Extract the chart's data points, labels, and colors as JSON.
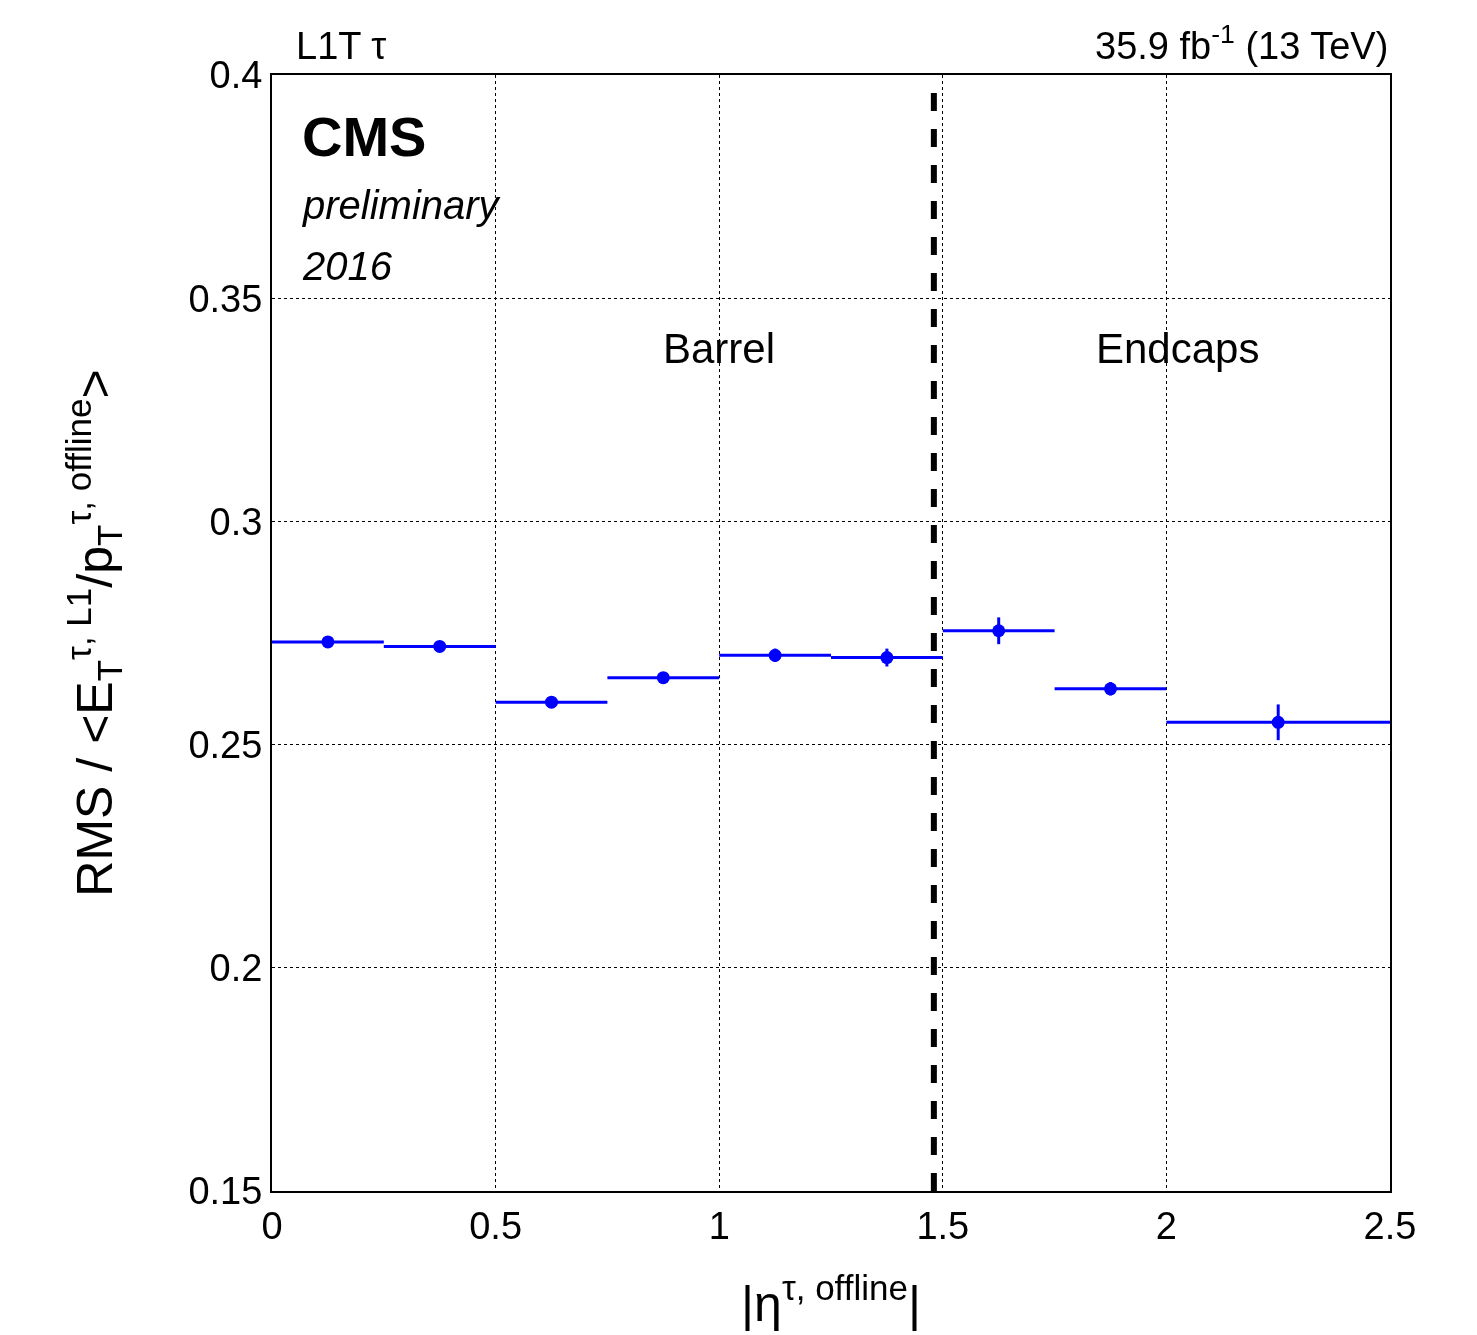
{
  "chart_data": {
    "type": "scatter",
    "xlabel": "|η$^{τ, offline}$|",
    "ylabel": "RMS / <E$_{T}$$^{τ, L1}$/p$_{T}$$^{τ, offline}$>",
    "x": [
      0.125,
      0.375,
      0.625,
      0.875,
      1.125,
      1.375,
      1.625,
      1.875,
      2.25
    ],
    "series": [
      {
        "color": "#0000ff",
        "values": [
          0.273,
          0.272,
          0.2595,
          0.265,
          0.27,
          0.2695,
          0.2755,
          0.2625,
          0.255
        ],
        "errors": [
          0.001,
          0.001,
          0.001,
          0.001,
          0.0015,
          0.002,
          0.003,
          0.0015,
          0.004
        ],
        "xerrors": [
          0.125,
          0.125,
          0.125,
          0.125,
          0.125,
          0.125,
          0.125,
          0.125,
          0.25
        ]
      }
    ],
    "xlim": [
      0,
      2.5
    ],
    "ylim": [
      0.15,
      0.4
    ],
    "xticks": [
      0,
      0.5,
      1,
      1.5,
      2,
      2.5
    ],
    "yticks": [
      0.15,
      0.2,
      0.25,
      0.3,
      0.35,
      0.4
    ],
    "grid": true,
    "marker": "circle",
    "ref_lines": [
      {
        "axis": "x",
        "value": 1.48,
        "color": "#000000",
        "line_style": "dashed"
      }
    ],
    "annotations": [
      "L1T τ",
      "35.9 fb$^{-1}$ (13 TeV)",
      "CMS",
      "preliminary",
      "2016",
      "Barrel",
      "Endcaps"
    ]
  }
}
